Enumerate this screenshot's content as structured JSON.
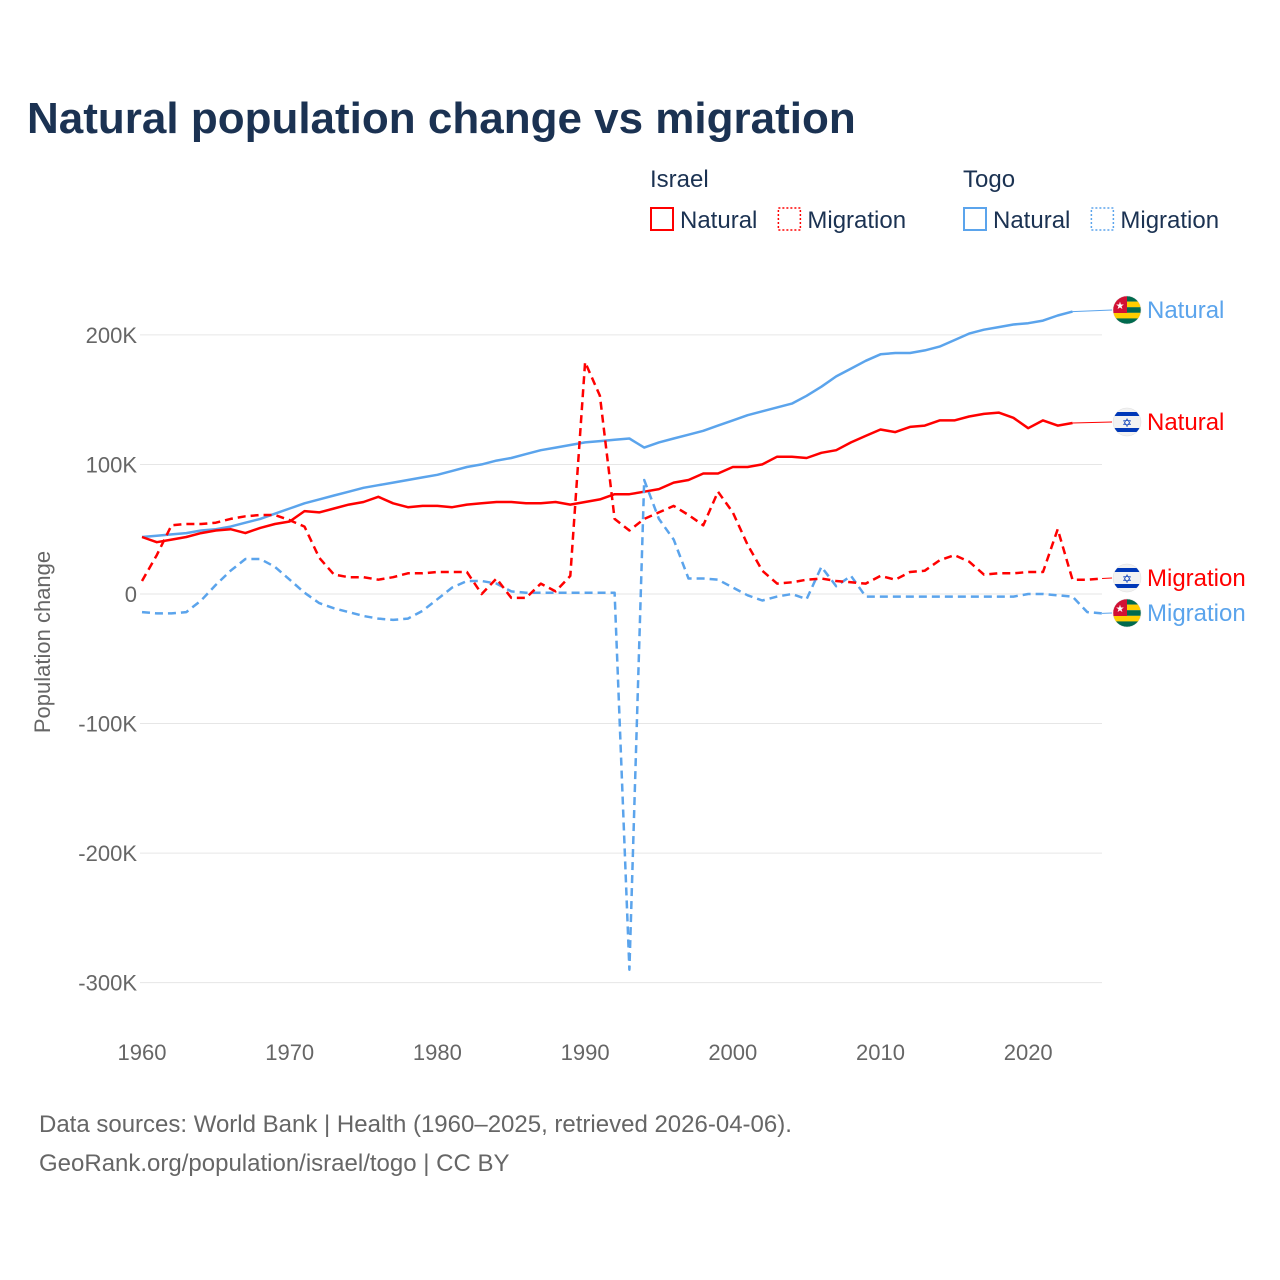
{
  "chart_data": {
    "type": "line",
    "title": "Natural population change vs migration",
    "ylabel": "Population change",
    "xlabel": "",
    "ylim": [
      -300000,
      220000
    ],
    "xlim": [
      1960,
      2025
    ],
    "yticks": [
      {
        "v": 200000,
        "label": "200K"
      },
      {
        "v": 100000,
        "label": "100K"
      },
      {
        "v": 0,
        "label": "0"
      },
      {
        "v": -100000,
        "label": "-100K"
      },
      {
        "v": -200000,
        "label": "-200K"
      },
      {
        "v": -300000,
        "label": "-300K"
      }
    ],
    "xticks": [
      1960,
      1970,
      1980,
      1990,
      2000,
      2010,
      2020
    ],
    "grid": true,
    "legend": {
      "placement": "top-right",
      "groups": [
        {
          "title": "Israel",
          "items": [
            "Natural",
            "Migration"
          ]
        },
        {
          "title": "Togo",
          "items": [
            "Natural",
            "Migration"
          ]
        }
      ]
    },
    "x_start": 1960,
    "series": [
      {
        "name": "Israel Natural",
        "country": "Israel",
        "label": "Natural",
        "color": "#ff0000",
        "dashed": false,
        "values": [
          44,
          40,
          42,
          44,
          47,
          49,
          50,
          47,
          51,
          54,
          56,
          64,
          63,
          66,
          69,
          71,
          75,
          70,
          67,
          68,
          68,
          67,
          69,
          70,
          71,
          71,
          70,
          70,
          71,
          69,
          71,
          73,
          77,
          77,
          79,
          81,
          86,
          88,
          93,
          93,
          98,
          98,
          100,
          106,
          106,
          105,
          109,
          111,
          117,
          122,
          127,
          125,
          129,
          130,
          134,
          134,
          137,
          139,
          140,
          136,
          128,
          134,
          130,
          132
        ]
      },
      {
        "name": "Togo Natural",
        "country": "Togo",
        "label": "Natural",
        "color": "#5ba4ec",
        "dashed": false,
        "values": [
          44,
          45,
          46,
          47,
          49,
          50,
          52,
          55,
          58,
          62,
          66,
          70,
          73,
          76,
          79,
          82,
          84,
          86,
          88,
          90,
          92,
          95,
          98,
          100,
          103,
          105,
          108,
          111,
          113,
          115,
          117,
          118,
          119,
          120,
          113,
          117,
          120,
          123,
          126,
          130,
          134,
          138,
          141,
          144,
          147,
          153,
          160,
          168,
          174,
          180,
          185,
          186,
          186,
          188,
          191,
          196,
          201,
          204,
          206,
          208,
          209,
          211,
          215,
          218
        ]
      },
      {
        "name": "Israel Migration",
        "country": "Israel",
        "label": "Migration",
        "color": "#ff0000",
        "dashed": true,
        "values": [
          10,
          30,
          53,
          54,
          54,
          55,
          58,
          60,
          61,
          61,
          57,
          52,
          28,
          15,
          13,
          13,
          11,
          13,
          16,
          16,
          17,
          17,
          17,
          0,
          12,
          -3,
          -3,
          8,
          2,
          14,
          179,
          153,
          58,
          49,
          58,
          63,
          68,
          61,
          53,
          79,
          63,
          38,
          18,
          8,
          9,
          11,
          12,
          10,
          9,
          8,
          14,
          11,
          17,
          18,
          26,
          30,
          25,
          15,
          16,
          16,
          17,
          17,
          50,
          11,
          11,
          12
        ]
      },
      {
        "name": "Togo Migration",
        "country": "Togo",
        "label": "Migration",
        "color": "#5ba4ec",
        "dashed": true,
        "values": [
          -14,
          -15,
          -15,
          -14,
          -5,
          7,
          18,
          27,
          27,
          21,
          11,
          1,
          -7,
          -11,
          -14,
          -17,
          -19,
          -20,
          -19,
          -13,
          -4,
          5,
          10,
          10,
          8,
          2,
          1,
          1,
          1,
          1,
          1,
          1,
          1,
          -290,
          88,
          58,
          42,
          12,
          12,
          11,
          5,
          -1,
          -5,
          -2,
          0,
          -4,
          21,
          6,
          14,
          -2,
          -2,
          -2,
          -2,
          -2,
          -2,
          -2,
          -2,
          -2,
          -2,
          -2,
          0,
          0,
          -1,
          -2,
          -14,
          -15
        ]
      }
    ],
    "value_unit": "thousands",
    "end_labels": [
      {
        "text": "Natural",
        "series": 1,
        "flag": "togo"
      },
      {
        "text": "Natural",
        "series": 0,
        "flag": "israel"
      },
      {
        "text": "Migration",
        "series": 2,
        "flag": "israel"
      },
      {
        "text": "Migration",
        "series": 3,
        "flag": "togo"
      }
    ]
  },
  "footer": {
    "line1": "Data sources: World Bank | Health (1960–2025, retrieved 2026-04-06).",
    "line2": "GeoRank.org/population/israel/togo | CC BY"
  }
}
